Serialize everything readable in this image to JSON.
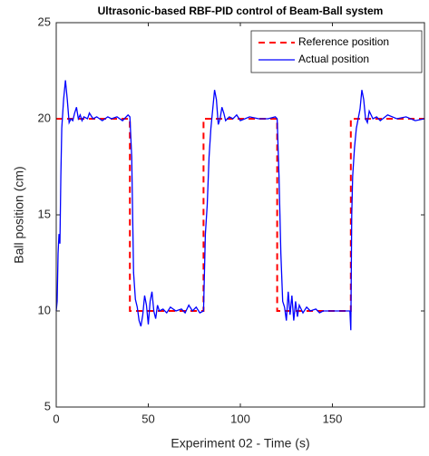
{
  "chart_data": {
    "type": "line",
    "title": "Ultrasonic-based RBF-PID control of Beam-Ball system",
    "x_label": "Experiment 02 - Time (s)",
    "y_label": "Ball position (cm)",
    "xlim": [
      0,
      200
    ],
    "xticks": [
      0,
      50,
      100,
      150
    ],
    "ylim": [
      5,
      25
    ],
    "yticks": [
      5,
      10,
      15,
      20,
      25
    ],
    "legend": "northeast",
    "series": [
      {
        "name": "Reference position",
        "color": "#ff0000",
        "line_style": "dashed",
        "x": [
          0,
          40,
          40,
          80,
          80,
          120,
          120,
          160,
          160,
          200
        ],
        "values": [
          20,
          20,
          10,
          10,
          20,
          20,
          10,
          10,
          20,
          20
        ]
      },
      {
        "name": "Actual position",
        "color": "#0000ff",
        "line_style": "solid",
        "x": [
          0,
          0.5,
          1,
          1.5,
          2,
          2.5,
          3,
          4,
          5,
          6,
          7,
          8,
          9,
          10,
          11,
          12,
          13,
          14,
          15,
          17,
          18,
          20,
          22,
          25,
          28,
          30,
          33,
          36,
          39,
          40,
          41,
          41.5,
          42,
          43,
          44,
          45,
          46,
          47,
          48,
          49,
          50,
          51,
          52,
          53,
          54,
          55,
          56,
          58,
          60,
          62,
          65,
          68,
          70,
          72,
          74,
          76,
          78,
          80,
          80.5,
          81,
          82,
          83,
          84,
          85,
          86,
          87,
          88,
          89,
          90,
          91,
          92,
          94,
          96,
          98,
          100,
          105,
          110,
          115,
          119,
          120,
          121,
          122,
          123,
          124,
          125,
          126,
          127,
          128,
          129,
          130,
          131,
          132,
          134,
          136,
          138,
          141,
          143,
          145,
          150,
          155,
          159.5,
          160,
          160.5,
          161,
          162,
          163,
          164,
          165,
          166,
          167,
          168,
          169,
          170,
          172,
          174,
          176,
          180,
          185,
          190,
          195,
          200
        ],
        "values": [
          10,
          10.5,
          13,
          14,
          13.5,
          17,
          19.5,
          21,
          22,
          21,
          19.8,
          20,
          19.9,
          20.3,
          20.6,
          20,
          20.2,
          19.9,
          20.1,
          20,
          20.3,
          20,
          20.1,
          19.9,
          20.1,
          20,
          20.1,
          19.9,
          20.2,
          20.1,
          18,
          15,
          12,
          10.6,
          10.2,
          9.5,
          9.2,
          9.8,
          10.8,
          10.3,
          9.3,
          10.5,
          11,
          10,
          9.6,
          10.3,
          10,
          10.1,
          9.9,
          10.2,
          10,
          10.1,
          9.9,
          10.3,
          10,
          10.2,
          9.9,
          10,
          12,
          14,
          15.5,
          18,
          19.5,
          20.5,
          21.5,
          21,
          19.7,
          20,
          20.6,
          20.3,
          19.9,
          20.1,
          20,
          20.2,
          19.9,
          20.1,
          20,
          20,
          20.1,
          20,
          17,
          13,
          10.5,
          10.2,
          9.5,
          11,
          9.8,
          10.8,
          9.5,
          10.5,
          9.7,
          10.3,
          9.9,
          10.2,
          10,
          10.1,
          9.9,
          10,
          10,
          10,
          10,
          9,
          15,
          17,
          18.5,
          19.5,
          20,
          20.5,
          21.5,
          21,
          20,
          19.8,
          20.4,
          20,
          20.1,
          19.9,
          20.2,
          20,
          20.1,
          19.9,
          20
        ]
      }
    ]
  }
}
